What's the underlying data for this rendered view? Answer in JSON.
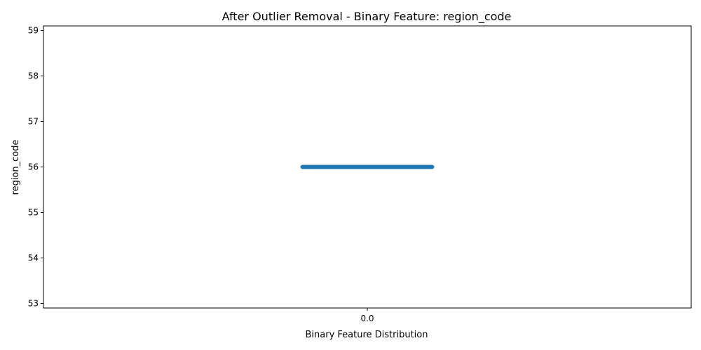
{
  "chart_data": {
    "type": "scatter",
    "title": "After Outlier Removal - Binary Feature: region_code",
    "xlabel": "Binary Feature Distribution",
    "ylabel": "region_code",
    "x_categories": [
      "0.0"
    ],
    "y_ticks": [
      53,
      54,
      55,
      56,
      57,
      58,
      59
    ],
    "y_tick_labels": [
      "53",
      "54",
      "55",
      "56",
      57,
      "58",
      "59"
    ],
    "ylim": [
      52.9,
      59.1
    ],
    "xlim": [
      -0.5,
      0.5
    ],
    "grid": false,
    "series": [
      {
        "color": "#1f77b4",
        "jitter_range": [
          -0.1,
          0.1
        ],
        "y": 56
      }
    ]
  }
}
